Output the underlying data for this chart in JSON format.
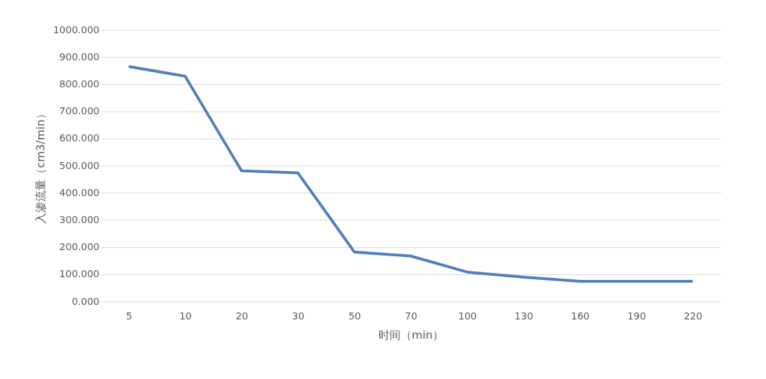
{
  "chart_data": {
    "type": "line",
    "xlabel": "时间（min）",
    "ylabel": "入渗流量（cm3/min）",
    "categories": [
      "5",
      "10",
      "20",
      "30",
      "50",
      "70",
      "100",
      "130",
      "160",
      "190",
      "220"
    ],
    "series": [
      {
        "color": "#4f7fbd",
        "values": [
          865,
          829,
          481,
          473,
          182,
          167,
          108,
          89,
          74,
          74,
          74
        ]
      }
    ],
    "ylim": [
      0,
      1000
    ],
    "yticks": [
      {
        "value": 0,
        "label": "0.000"
      },
      {
        "value": 100,
        "label": "100.000"
      },
      {
        "value": 200,
        "label": "200.000"
      },
      {
        "value": 300,
        "label": "300.000"
      },
      {
        "value": 400,
        "label": "400.000"
      },
      {
        "value": 500,
        "label": "500.000"
      },
      {
        "value": 600,
        "label": "600.000"
      },
      {
        "value": 700,
        "label": "700.000"
      },
      {
        "value": 800,
        "label": "800.000"
      },
      {
        "value": 900,
        "label": "900.000"
      },
      {
        "value": 1000,
        "label": "1000.000"
      }
    ],
    "grid": "y",
    "marker": "none",
    "line_style": "solid"
  }
}
